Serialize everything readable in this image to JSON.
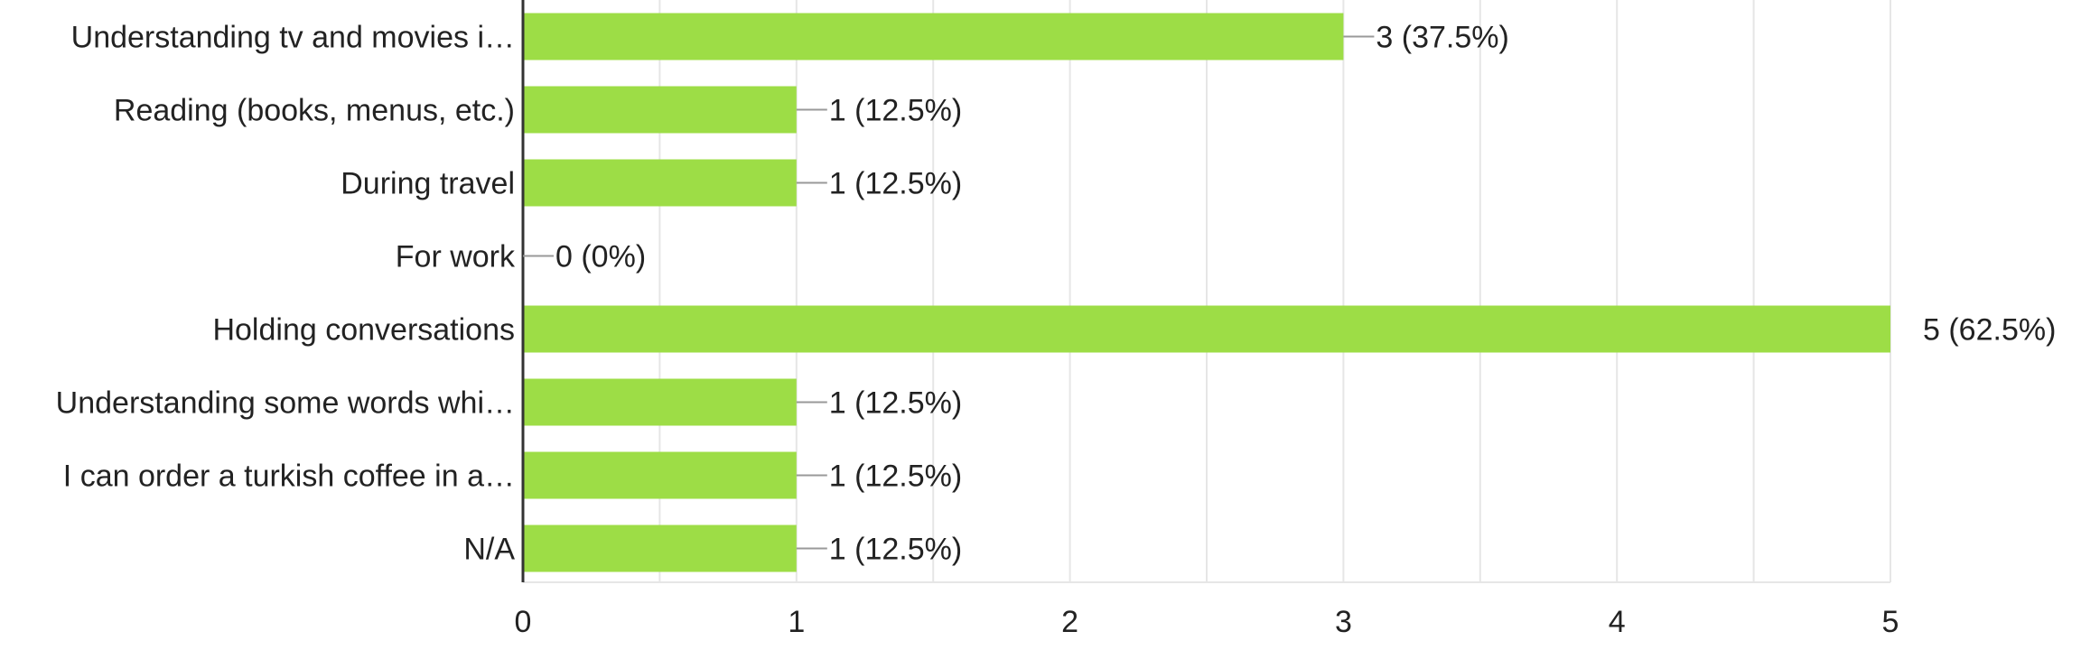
{
  "chart_data": {
    "type": "bar",
    "orientation": "horizontal",
    "categories": [
      "Understanding tv and movies i…",
      "Reading (books, menus, etc.)",
      "During travel",
      "For work",
      "Holding conversations",
      "Understanding some words whi…",
      "I can order a turkish coffee in a…",
      "N/A"
    ],
    "values": [
      3,
      1,
      1,
      0,
      5,
      1,
      1,
      1
    ],
    "data_labels": [
      "3 (37.5%)",
      "1 (12.5%)",
      "1 (12.5%)",
      "0 (0%)",
      "5 (62.5%)",
      "1 (12.5%)",
      "1 (12.5%)",
      "1 (12.5%)"
    ],
    "xlim": [
      0,
      5
    ],
    "x_ticks": [
      "0",
      "1",
      "2",
      "3",
      "4",
      "5"
    ],
    "grid": true,
    "bar_color": "#9ddd46",
    "grid_color": "#e6e6e6",
    "axis_color": "#333333",
    "leader_color": "#999999"
  }
}
